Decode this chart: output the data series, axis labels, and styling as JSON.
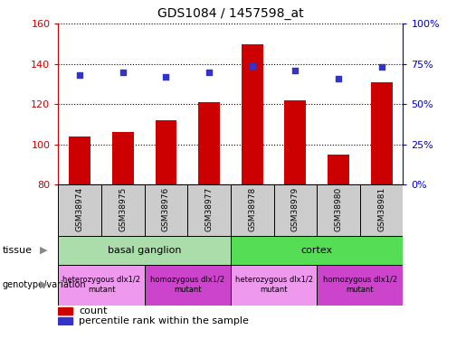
{
  "title": "GDS1084 / 1457598_at",
  "samples": [
    "GSM38974",
    "GSM38975",
    "GSM38976",
    "GSM38977",
    "GSM38978",
    "GSM38979",
    "GSM38980",
    "GSM38981"
  ],
  "counts": [
    104,
    106,
    112,
    121,
    150,
    122,
    95,
    131
  ],
  "percentile_ranks": [
    68,
    70,
    67,
    70,
    74,
    71,
    66,
    73
  ],
  "ylim_left": [
    80,
    160
  ],
  "ylim_right": [
    0,
    100
  ],
  "yticks_left": [
    80,
    100,
    120,
    140,
    160
  ],
  "yticks_right": [
    0,
    25,
    50,
    75,
    100
  ],
  "bar_color": "#cc0000",
  "dot_color": "#3333cc",
  "tissue_labels": [
    {
      "label": "basal ganglion",
      "start": 0,
      "end": 4,
      "color": "#aaddaa"
    },
    {
      "label": "cortex",
      "start": 4,
      "end": 8,
      "color": "#55dd55"
    }
  ],
  "genotype_labels": [
    {
      "label": "heterozygous dlx1/2\nmutant",
      "start": 0,
      "end": 2,
      "color": "#ee99ee"
    },
    {
      "label": "homozygous dlx1/2\nmutant",
      "start": 2,
      "end": 4,
      "color": "#cc44cc"
    },
    {
      "label": "heterozygous dlx1/2\nmutant",
      "start": 4,
      "end": 6,
      "color": "#ee99ee"
    },
    {
      "label": "homozygous dlx1/2\nmutant",
      "start": 6,
      "end": 8,
      "color": "#cc44cc"
    }
  ],
  "legend_count_label": "count",
  "legend_percentile_label": "percentile rank within the sample",
  "left_axis_color": "#cc0000",
  "right_axis_color": "#0000cc",
  "sample_box_color": "#cccccc",
  "grid_color": "black",
  "bar_bottom": 80
}
